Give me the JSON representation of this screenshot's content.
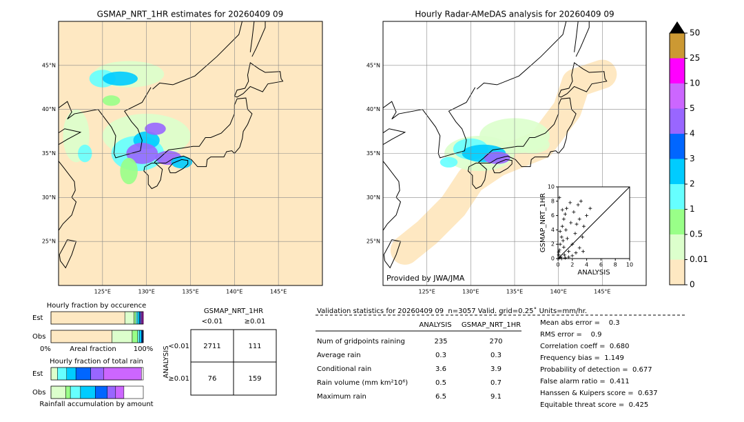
{
  "left_map": {
    "title": "GSMAP_NRT_1HR estimates for 20260409 09",
    "lonlim": [
      120,
      150
    ],
    "latlim": [
      20,
      50
    ],
    "lon_ticks": [
      {
        "value": 125,
        "label": "125°E"
      },
      {
        "value": 130,
        "label": "130°E"
      },
      {
        "value": 135,
        "label": "135°E"
      },
      {
        "value": 140,
        "label": "140°E"
      },
      {
        "value": 145,
        "label": "145°E"
      }
    ],
    "lat_ticks": [
      {
        "value": 25,
        "label": "25°N"
      },
      {
        "value": 30,
        "label": "30°N"
      },
      {
        "value": 35,
        "label": "35°N"
      },
      {
        "value": 40,
        "label": "40°N"
      },
      {
        "value": 45,
        "label": "45°N"
      }
    ]
  },
  "right_map": {
    "title": "Hourly Radar-AMeDAS analysis for 20260409 09",
    "credit": "Provided by JWA/JMA",
    "lonlim": [
      120,
      150
    ],
    "latlim": [
      20,
      50
    ],
    "lon_ticks": [
      {
        "value": 125,
        "label": "125°E"
      },
      {
        "value": 130,
        "label": "130°E"
      },
      {
        "value": 135,
        "label": "135°E"
      },
      {
        "value": 140,
        "label": "140°E"
      },
      {
        "value": 145,
        "label": "145°E"
      }
    ],
    "lat_ticks": [
      {
        "value": 25,
        "label": "25°N"
      },
      {
        "value": 30,
        "label": "30°N"
      },
      {
        "value": 35,
        "label": "35°N"
      },
      {
        "value": 40,
        "label": "40°N"
      },
      {
        "value": 45,
        "label": "45°N"
      }
    ]
  },
  "colorbar": {
    "bounds": [
      0,
      0.01,
      0.5,
      1,
      2,
      3,
      4,
      5,
      10,
      25,
      50
    ],
    "colors": [
      "#fee8c2",
      "#dcffcc",
      "#99ff88",
      "#66ffff",
      "#00ccff",
      "#0066ff",
      "#9966ff",
      "#cc66ff",
      "#ff00ff",
      "#cc9933"
    ],
    "extend_color": "#000000"
  },
  "chart_data": {
    "type": "scatter",
    "xlabel": "ANALYSIS",
    "ylabel": "GSMAP_NRT_1HR",
    "xlim": [
      0,
      10
    ],
    "ylim": [
      0,
      10
    ],
    "xticks": [
      0,
      2,
      4,
      6,
      8,
      10
    ],
    "yticks": [
      0,
      2,
      4,
      6,
      8,
      10
    ],
    "color": "#000000",
    "x": [
      0.1,
      0.2,
      0.3,
      0.5,
      0.6,
      0.8,
      1.0,
      1.2,
      0.4,
      0.2,
      0.9,
      1.5,
      2.0,
      2.5,
      3.0,
      3.5,
      0.3,
      0.7,
      1.1,
      1.8,
      2.2,
      2.8,
      3.2,
      4.0,
      4.5,
      0.5,
      1.0,
      1.5,
      2.0,
      2.4,
      3.0,
      3.6,
      0.2,
      0.6,
      1.3,
      2.6,
      3.4,
      0.1,
      0.8,
      1.7
    ],
    "y": [
      0.5,
      1.2,
      2.0,
      3.0,
      4.5,
      5.5,
      6.2,
      7.0,
      0.2,
      0.1,
      0.5,
      1.0,
      0.4,
      0.8,
      1.5,
      1.0,
      3.8,
      2.5,
      4.0,
      5.0,
      6.5,
      7.5,
      8.0,
      6.0,
      7.0,
      0.0,
      0.1,
      0.2,
      2.0,
      3.5,
      5.5,
      4.5,
      8.5,
      6.8,
      2.8,
      4.8,
      3.0,
      0.9,
      1.6,
      7.8
    ]
  },
  "occurrence": {
    "title": "Hourly fraction by occurence",
    "axis_labels": [
      "0%",
      "Areal fraction",
      "100%"
    ],
    "rows": [
      {
        "label": "Est",
        "fractions": [
          0.8,
          0.1,
          0.02,
          0.02,
          0.02,
          0.01,
          0.01,
          0.01,
          0.01,
          0
        ]
      },
      {
        "label": "Obs",
        "fractions": [
          0.66,
          0.22,
          0.06,
          0.02,
          0.02,
          0.01,
          0.005,
          0.005,
          0,
          0
        ]
      }
    ]
  },
  "total_rain": {
    "title": "Hourly fraction of total rain",
    "caption": "Rainfall accumulation by amount",
    "rows": [
      {
        "label": "Est",
        "fractions": [
          0,
          0.07,
          0,
          0.1,
          0.1,
          0.16,
          0.14,
          0.41,
          0,
          0
        ]
      },
      {
        "label": "Obs",
        "fractions": [
          0,
          0.16,
          0.05,
          0.11,
          0.16,
          0.13,
          0.09,
          0.09,
          0,
          0
        ]
      }
    ]
  },
  "contingency": {
    "title": "GSMAP_NRT_1HR",
    "col_labels": [
      "<0.01",
      "≥0.01"
    ],
    "row_title": "ANALYSIS",
    "row_labels": [
      "<0.01",
      "≥0.01"
    ],
    "cells": [
      [
        2711,
        111
      ],
      [
        76,
        159
      ]
    ]
  },
  "stats": {
    "header": "Validation statistics for 20260409 09  n=3057 Valid. grid=0.25˚ Units=mm/hr.",
    "columns": [
      "ANALYSIS",
      "GSMAP_NRT_1HR"
    ],
    "rows": [
      {
        "label": "Num of gridpoints raining",
        "values": [
          235,
          270
        ]
      },
      {
        "label": "Average rain",
        "values": [
          0.3,
          0.3
        ]
      },
      {
        "label": "Conditional rain",
        "values": [
          3.6,
          3.9
        ]
      },
      {
        "label": "Rain volume (mm km²10⁶)",
        "values": [
          0.5,
          0.7
        ]
      },
      {
        "label": "Maximum rain",
        "values": [
          6.5,
          9.1
        ]
      }
    ],
    "scores": [
      "Mean abs error =    0.3",
      "RMS error =    0.9",
      "Correlation coeff =  0.680",
      "Frequency bias =  1.149",
      "Probability of detection =  0.677",
      "False alarm ratio =  0.411",
      "Hanssen & Kuipers score =  0.637",
      "Equitable threat score =  0.425"
    ]
  }
}
